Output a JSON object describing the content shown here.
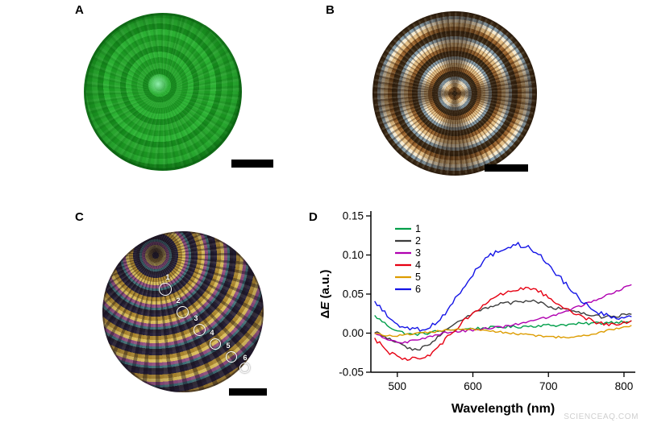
{
  "watermark": "SCIENCEAQ.COM",
  "panels": {
    "a": {
      "label": "A"
    },
    "b": {
      "label": "B"
    },
    "c": {
      "label": "C",
      "markers": [
        "1",
        "2",
        "3",
        "4",
        "5",
        "6"
      ]
    },
    "d": {
      "label": "D"
    }
  },
  "chart_data": {
    "type": "line",
    "title": "",
    "xlabel": "Wavelength (nm)",
    "ylabel": "ΔE (a.u.)",
    "xlim": [
      465,
      815
    ],
    "ylim": [
      -0.05,
      0.15
    ],
    "xticks": [
      500,
      600,
      700,
      800
    ],
    "yticks": [
      -0.05,
      0.0,
      0.05,
      0.1,
      0.15
    ],
    "grid": false,
    "legend_position": "top-left",
    "x": [
      470,
      480,
      490,
      500,
      510,
      520,
      530,
      540,
      550,
      560,
      570,
      580,
      590,
      600,
      610,
      620,
      630,
      640,
      650,
      660,
      670,
      680,
      690,
      700,
      710,
      720,
      730,
      740,
      750,
      760,
      770,
      780,
      790,
      800,
      810
    ],
    "series": [
      {
        "name": "1",
        "color": "#009e49",
        "noise": 0.0018,
        "values": [
          0.022,
          0.015,
          0.008,
          0.003,
          0.0,
          -0.002,
          -0.001,
          0.0,
          0.002,
          0.003,
          0.004,
          0.005,
          0.005,
          0.006,
          0.006,
          0.007,
          0.007,
          0.008,
          0.008,
          0.008,
          0.009,
          0.009,
          0.01,
          0.01,
          0.01,
          0.011,
          0.011,
          0.012,
          0.012,
          0.013,
          0.013,
          0.014,
          0.014,
          0.015,
          0.016
        ]
      },
      {
        "name": "2",
        "color": "#3c3c3c",
        "noise": 0.002,
        "values": [
          0.002,
          -0.003,
          -0.008,
          -0.013,
          -0.018,
          -0.021,
          -0.02,
          -0.015,
          -0.008,
          0.0,
          0.008,
          0.015,
          0.02,
          0.025,
          0.03,
          0.033,
          0.036,
          0.04,
          0.038,
          0.042,
          0.04,
          0.043,
          0.038,
          0.035,
          0.032,
          0.03,
          0.028,
          0.026,
          0.024,
          0.022,
          0.021,
          0.021,
          0.022,
          0.023,
          0.024
        ]
      },
      {
        "name": "3",
        "color": "#b000b0",
        "noise": 0.0015,
        "values": [
          0.0,
          -0.005,
          -0.009,
          -0.011,
          -0.012,
          -0.01,
          -0.008,
          -0.005,
          -0.002,
          0.0,
          0.001,
          0.002,
          0.003,
          0.004,
          0.005,
          0.006,
          0.007,
          0.008,
          0.01,
          0.012,
          0.014,
          0.016,
          0.018,
          0.021,
          0.024,
          0.027,
          0.03,
          0.034,
          0.038,
          0.042,
          0.046,
          0.05,
          0.054,
          0.058,
          0.062
        ]
      },
      {
        "name": "4",
        "color": "#e60012",
        "noise": 0.0025,
        "values": [
          -0.008,
          -0.015,
          -0.025,
          -0.03,
          -0.033,
          -0.031,
          -0.034,
          -0.03,
          -0.022,
          -0.012,
          -0.002,
          0.008,
          0.018,
          0.026,
          0.033,
          0.04,
          0.046,
          0.051,
          0.055,
          0.057,
          0.058,
          0.056,
          0.052,
          0.046,
          0.04,
          0.034,
          0.028,
          0.023,
          0.019,
          0.015,
          0.012,
          0.011,
          0.012,
          0.014,
          0.016
        ]
      },
      {
        "name": "5",
        "color": "#dd9c00",
        "noise": 0.0012,
        "values": [
          0.0,
          -0.002,
          -0.003,
          -0.003,
          -0.002,
          -0.001,
          0.0,
          0.001,
          0.002,
          0.003,
          0.004,
          0.005,
          0.005,
          0.005,
          0.004,
          0.003,
          0.002,
          0.001,
          0.0,
          -0.001,
          -0.002,
          -0.003,
          -0.004,
          -0.004,
          -0.005,
          -0.005,
          -0.005,
          -0.004,
          -0.003,
          -0.001,
          0.001,
          0.004,
          0.006,
          0.008,
          0.01
        ]
      },
      {
        "name": "6",
        "color": "#1414e6",
        "noise": 0.003,
        "values": [
          0.04,
          0.03,
          0.02,
          0.012,
          0.007,
          0.005,
          0.004,
          0.006,
          0.012,
          0.022,
          0.035,
          0.048,
          0.062,
          0.075,
          0.087,
          0.097,
          0.104,
          0.109,
          0.112,
          0.113,
          0.111,
          0.106,
          0.098,
          0.088,
          0.077,
          0.066,
          0.055,
          0.045,
          0.037,
          0.03,
          0.025,
          0.022,
          0.02,
          0.02,
          0.021
        ]
      }
    ]
  }
}
